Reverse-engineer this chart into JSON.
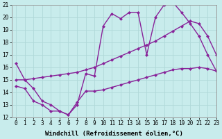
{
  "xlabel": "Windchill (Refroidissement éolien,°C)",
  "bg_color": "#c8ecec",
  "grid_color": "#b0d8d8",
  "line_color": "#882299",
  "xlim": [
    -0.5,
    23
  ],
  "ylim": [
    12,
    21
  ],
  "yticks": [
    12,
    13,
    14,
    15,
    16,
    17,
    18,
    19,
    20,
    21
  ],
  "xticks": [
    0,
    1,
    2,
    3,
    4,
    5,
    6,
    7,
    8,
    9,
    10,
    11,
    12,
    13,
    14,
    15,
    16,
    17,
    18,
    19,
    20,
    21,
    22,
    23
  ],
  "line1_x": [
    0,
    1,
    2,
    3,
    4,
    5,
    6,
    7,
    8,
    9,
    10,
    11,
    12,
    13,
    14,
    15,
    16,
    17,
    18,
    19,
    20,
    21,
    22,
    23
  ],
  "line1_y": [
    16.3,
    15.0,
    14.3,
    13.3,
    13.0,
    12.5,
    12.2,
    13.0,
    15.5,
    15.3,
    19.3,
    20.3,
    19.9,
    20.4,
    20.4,
    17.0,
    20.0,
    21.0,
    21.2,
    20.4,
    19.5,
    18.5,
    17.0,
    15.7
  ],
  "line2_x": [
    0,
    1,
    2,
    3,
    4,
    5,
    6,
    7,
    8,
    9,
    10,
    11,
    12,
    13,
    14,
    15,
    16,
    17,
    18,
    19,
    20,
    21,
    22,
    23
  ],
  "line2_y": [
    15.0,
    15.0,
    15.1,
    15.2,
    15.3,
    15.4,
    15.5,
    15.6,
    15.8,
    16.0,
    16.3,
    16.6,
    16.9,
    17.2,
    17.5,
    17.8,
    18.1,
    18.5,
    18.9,
    19.3,
    19.7,
    19.5,
    18.5,
    17.0
  ],
  "line3_x": [
    0,
    1,
    2,
    3,
    4,
    5,
    6,
    7,
    8,
    9,
    10,
    11,
    12,
    13,
    14,
    15,
    16,
    17,
    18,
    19,
    20,
    21,
    22,
    23
  ],
  "line3_y": [
    14.5,
    14.3,
    13.3,
    13.0,
    12.5,
    12.5,
    12.2,
    13.2,
    14.1,
    14.1,
    14.2,
    14.4,
    14.6,
    14.8,
    15.0,
    15.2,
    15.4,
    15.6,
    15.8,
    15.9,
    15.9,
    16.0,
    15.9,
    15.7
  ],
  "marker": "D",
  "markersize": 2.5,
  "linewidth": 1.0,
  "tick_fontsize": 5.5,
  "xlabel_fontsize": 6.5
}
